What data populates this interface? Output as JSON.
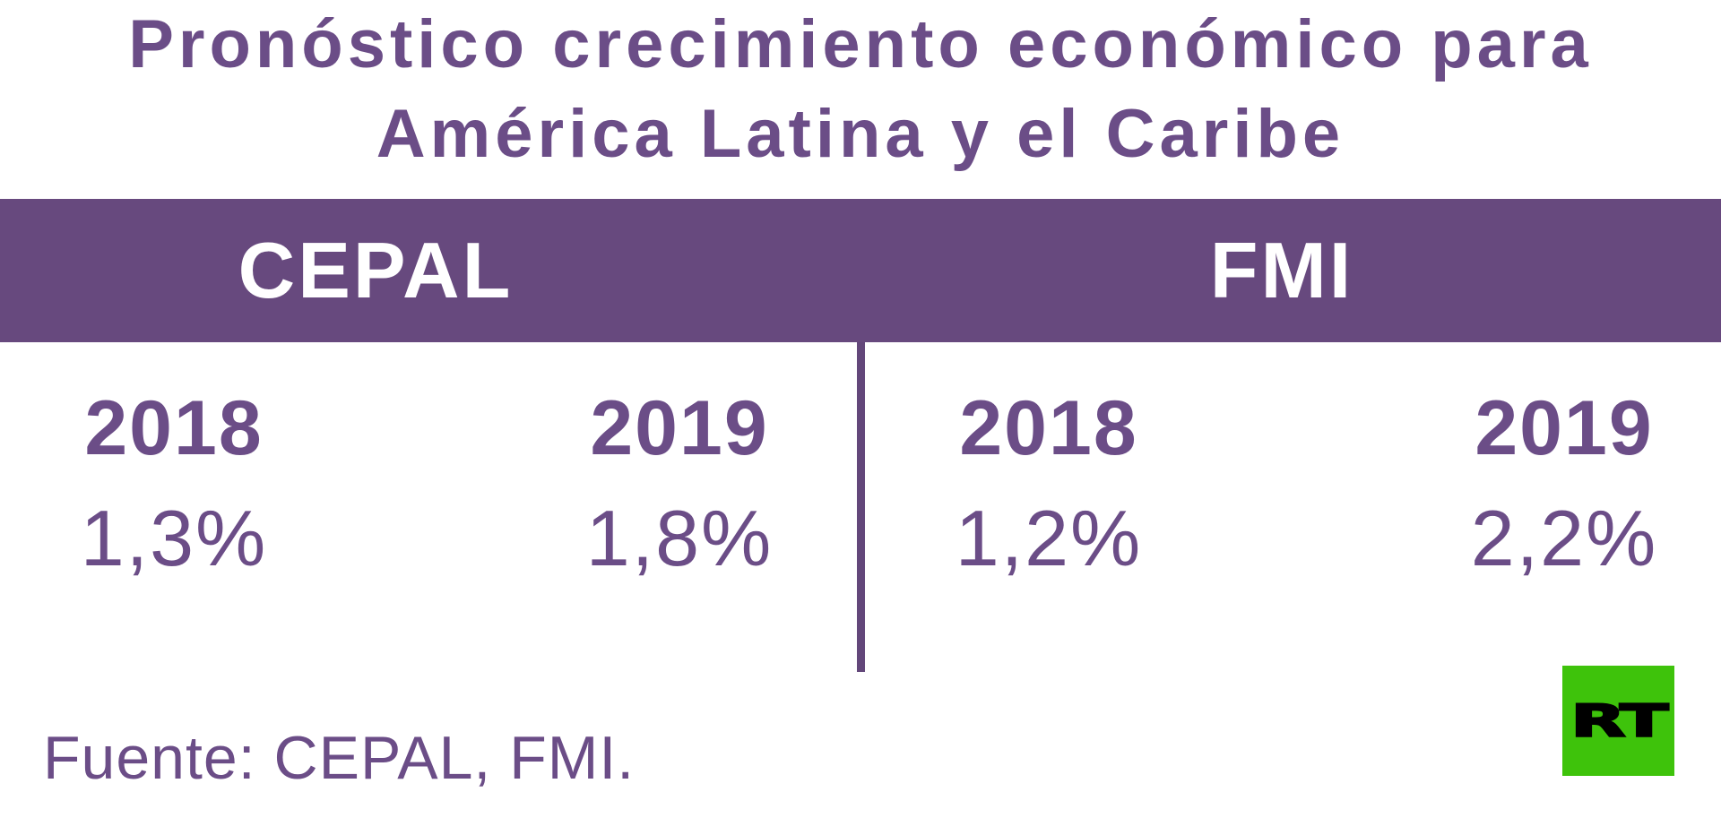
{
  "title": {
    "line1": "Pronóstico crecimiento económico para",
    "line2": "América Latina y el Caribe"
  },
  "table": {
    "groups": [
      {
        "name": "CEPAL",
        "columns": [
          {
            "year": "2018",
            "value": "1,3%"
          },
          {
            "year": "2019",
            "value": "1,8%"
          }
        ]
      },
      {
        "name": "FMI",
        "columns": [
          {
            "year": "2018",
            "value": "1,2%"
          },
          {
            "year": "2019",
            "value": "2,2%"
          }
        ]
      }
    ]
  },
  "source": {
    "label": "Fuente: CEPAL, FMI."
  },
  "logo": {
    "text": "RT"
  },
  "colors": {
    "text_purple": "#6b4d87",
    "band_purple": "#67497e",
    "divider_purple": "#63477a",
    "logo_green": "#3ec30b",
    "band_text": "#ffffff",
    "logo_text": "#000000",
    "background": "#ffffff"
  },
  "chart_data": {
    "type": "table",
    "title": "Pronóstico crecimiento económico para América Latina y el Caribe",
    "categories": [
      "2018",
      "2019"
    ],
    "series": [
      {
        "name": "CEPAL",
        "values": [
          1.3,
          1.8
        ]
      },
      {
        "name": "FMI",
        "values": [
          1.2,
          2.2
        ]
      }
    ],
    "unit": "%",
    "value_labels": {
      "CEPAL": [
        "1,3%",
        "1,8%"
      ],
      "FMI": [
        "1,2%",
        "2,2%"
      ]
    },
    "source": "Fuente: CEPAL, FMI.",
    "layout": "two column groups separated by a vertical divider under a purple header band"
  }
}
